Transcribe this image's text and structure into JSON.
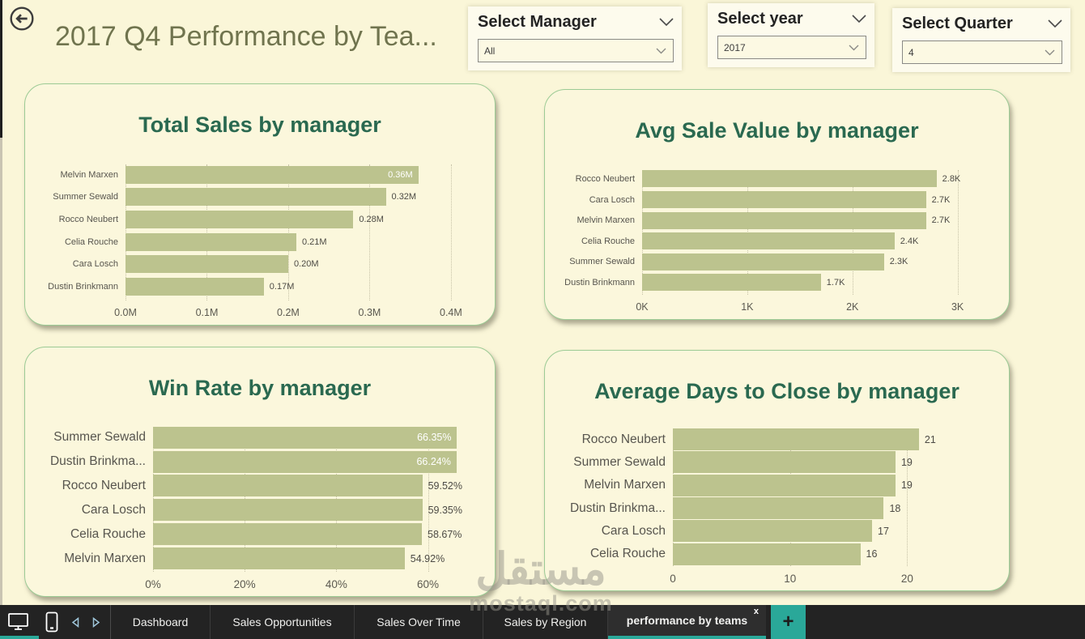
{
  "header": {
    "title": "2017 Q4 Performance by Tea...",
    "back_icon": "arrow-left-circle-icon"
  },
  "slicers": [
    {
      "label": "Select Manager",
      "value": "All"
    },
    {
      "label": "Select year",
      "value": "2017"
    },
    {
      "label": "Select Quarter",
      "value": "4"
    }
  ],
  "colors": {
    "page_background": "#faf6d8",
    "card_background": "#fbf7dc",
    "card_border": "#9ccb95",
    "bar": "#bcc38e",
    "chart_title": "#2a6950",
    "page_title": "#70744e",
    "taskbar_background": "#232323",
    "accent_teal": "#2aa899"
  },
  "chart_data": [
    {
      "type": "bar",
      "orientation": "horizontal",
      "title": "Total Sales by manager",
      "xlabel": "",
      "ylabel": "",
      "bar_color": "#bcc38e",
      "x_max": 0.42,
      "x_ticks": [
        {
          "v": 0.0,
          "label": "0.0M"
        },
        {
          "v": 0.1,
          "label": "0.1M"
        },
        {
          "v": 0.2,
          "label": "0.2M"
        },
        {
          "v": 0.3,
          "label": "0.3M"
        },
        {
          "v": 0.4,
          "label": "0.4M"
        }
      ],
      "rows": [
        {
          "category": "Melvin Marxen",
          "value": 0.36,
          "label": "0.36M",
          "label_inside": true
        },
        {
          "category": "Summer Sewald",
          "value": 0.32,
          "label": "0.32M",
          "label_inside": false
        },
        {
          "category": "Rocco Neubert",
          "value": 0.28,
          "label": "0.28M",
          "label_inside": false
        },
        {
          "category": "Celia Rouche",
          "value": 0.21,
          "label": "0.21M",
          "label_inside": false
        },
        {
          "category": "Cara Losch",
          "value": 0.2,
          "label": "0.20M",
          "label_inside": false
        },
        {
          "category": "Dustin Brinkmann",
          "value": 0.17,
          "label": "0.17M",
          "label_inside": false
        }
      ]
    },
    {
      "type": "bar",
      "orientation": "horizontal",
      "title": "Avg Sale Value by manager",
      "xlabel": "",
      "ylabel": "",
      "bar_color": "#bcc38e",
      "x_max": 3.18,
      "x_ticks": [
        {
          "v": 0,
          "label": "0K"
        },
        {
          "v": 1,
          "label": "1K"
        },
        {
          "v": 2,
          "label": "2K"
        },
        {
          "v": 3,
          "label": "3K"
        }
      ],
      "rows": [
        {
          "category": "Rocco Neubert",
          "value": 2.8,
          "label": "2.8K",
          "label_inside": false
        },
        {
          "category": "Cara Losch",
          "value": 2.7,
          "label": "2.7K",
          "label_inside": false
        },
        {
          "category": "Melvin Marxen",
          "value": 2.7,
          "label": "2.7K",
          "label_inside": false
        },
        {
          "category": "Celia Rouche",
          "value": 2.4,
          "label": "2.4K",
          "label_inside": false
        },
        {
          "category": "Summer Sewald",
          "value": 2.3,
          "label": "2.3K",
          "label_inside": false
        },
        {
          "category": "Dustin Brinkmann",
          "value": 1.7,
          "label": "1.7K",
          "label_inside": false
        }
      ]
    },
    {
      "type": "bar",
      "orientation": "horizontal",
      "title": "Win Rate by manager",
      "xlabel": "",
      "ylabel": "",
      "bar_color": "#bcc38e",
      "x_max": 67.5,
      "x_ticks": [
        {
          "v": 0,
          "label": "0%"
        },
        {
          "v": 20,
          "label": "20%"
        },
        {
          "v": 40,
          "label": "40%"
        },
        {
          "v": 60,
          "label": "60%"
        }
      ],
      "rows": [
        {
          "category": "Summer Sewald",
          "value": 66.35,
          "label": "66.35%",
          "label_inside": true
        },
        {
          "category": "Dustin Brinkma...",
          "value": 66.24,
          "label": "66.24%",
          "label_inside": true
        },
        {
          "category": "Rocco Neubert",
          "value": 59.52,
          "label": "59.52%",
          "label_inside": false
        },
        {
          "category": "Cara Losch",
          "value": 59.35,
          "label": "59.35%",
          "label_inside": false
        },
        {
          "category": "Celia Rouche",
          "value": 58.67,
          "label": "58.67%",
          "label_inside": false
        },
        {
          "category": "Melvin Marxen",
          "value": 54.92,
          "label": "54.92%",
          "label_inside": false
        }
      ]
    },
    {
      "type": "bar",
      "orientation": "horizontal",
      "title": "Average Days to Close by manager",
      "xlabel": "",
      "ylabel": "",
      "bar_color": "#bcc38e",
      "x_max": 25.5,
      "x_ticks": [
        {
          "v": 0,
          "label": "0"
        },
        {
          "v": 10,
          "label": "10"
        },
        {
          "v": 20,
          "label": "20"
        }
      ],
      "rows": [
        {
          "category": "Rocco Neubert",
          "value": 21,
          "label": "21",
          "label_inside": false
        },
        {
          "category": "Summer Sewald",
          "value": 19,
          "label": "19",
          "label_inside": false
        },
        {
          "category": "Melvin Marxen",
          "value": 19,
          "label": "19",
          "label_inside": false
        },
        {
          "category": "Dustin Brinkma...",
          "value": 18,
          "label": "18",
          "label_inside": false
        },
        {
          "category": "Cara Losch",
          "value": 17,
          "label": "17",
          "label_inside": false
        },
        {
          "category": "Celia Rouche",
          "value": 16,
          "label": "16",
          "label_inside": false
        }
      ]
    }
  ],
  "watermark": {
    "line1": "مستقل",
    "line2": "mostaql.com"
  },
  "taskbar": {
    "view_icons": [
      "desktop-icon",
      "phone-icon"
    ],
    "nav_icons": [
      "page-prev-icon",
      "page-next-icon"
    ],
    "tabs": [
      {
        "label": "Dashboard"
      },
      {
        "label": "Sales Opportunities"
      },
      {
        "label": "Sales Over Time"
      },
      {
        "label": "Sales by Region"
      },
      {
        "label": "performance by teams",
        "active": true
      }
    ],
    "close_label": "x",
    "add_label": "+"
  }
}
